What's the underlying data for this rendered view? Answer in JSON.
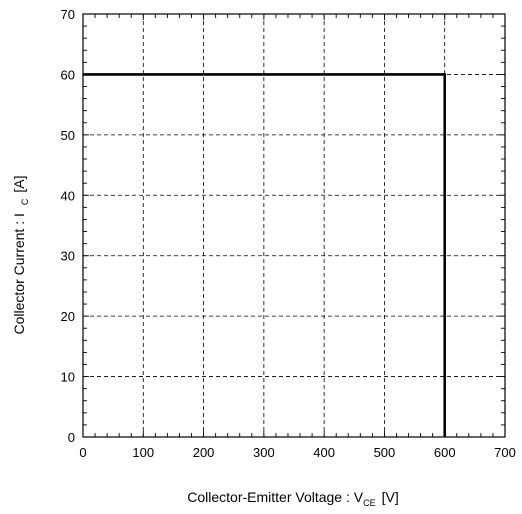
{
  "chart_data": {
    "type": "line",
    "title": "",
    "xlabel": {
      "text": "Collector-Emitter Voltage  : V",
      "sub": "CE",
      "unit": "[V]"
    },
    "ylabel": {
      "text": "Collector Current :  I",
      "sub": "C",
      "unit": "[A]"
    },
    "xlim": [
      0,
      700
    ],
    "ylim": [
      0,
      70
    ],
    "xticks": [
      0,
      100,
      200,
      300,
      400,
      500,
      600,
      700
    ],
    "yticks": [
      0,
      10,
      20,
      30,
      40,
      50,
      60,
      70
    ],
    "grid": true,
    "grid_style": "dashed",
    "series": [
      {
        "color": "#000000",
        "points": [
          [
            0,
            60
          ],
          [
            600,
            60
          ],
          [
            600,
            0
          ]
        ]
      }
    ]
  }
}
